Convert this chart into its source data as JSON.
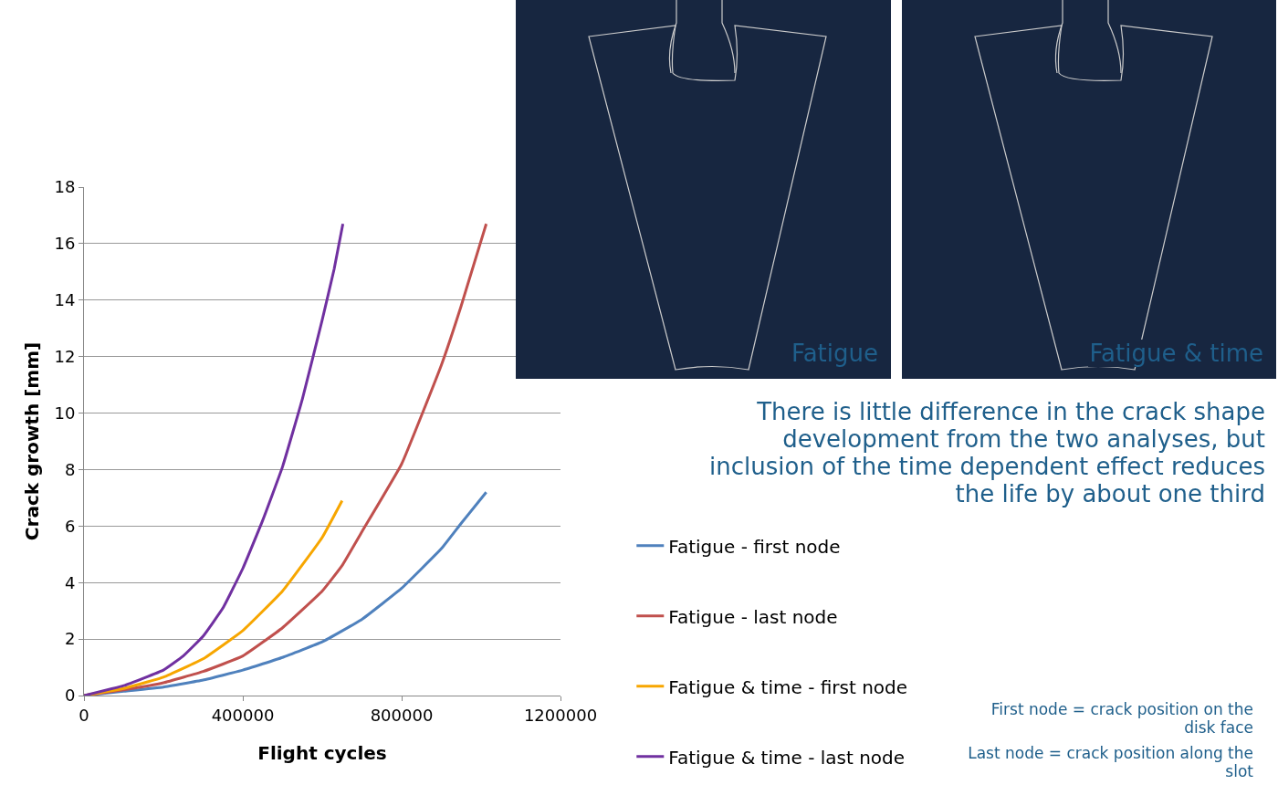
{
  "chart_data": {
    "type": "line",
    "xlabel": "Flight cycles",
    "ylabel": "Crack growth [mm]",
    "xlim": [
      0,
      1200000
    ],
    "xticks": [
      0,
      400000,
      800000,
      1200000
    ],
    "ylim": [
      0,
      18
    ],
    "yticks": [
      0,
      2,
      4,
      6,
      8,
      10,
      12,
      14,
      16,
      18
    ],
    "grid": "y",
    "legend": "bottom right",
    "line_style": "solid",
    "series": [
      {
        "name": "Fatigue - first node",
        "color": "#4f81bd",
        "x": [
          0,
          100000,
          200000,
          300000,
          400000,
          500000,
          600000,
          700000,
          800000,
          900000,
          950000,
          1013000
        ],
        "values": [
          0,
          0.15,
          0.3,
          0.55,
          0.9,
          1.35,
          1.9,
          2.7,
          3.8,
          5.2,
          6.1,
          7.2
        ]
      },
      {
        "name": "Fatigue - last node",
        "color": "#c0504d",
        "x": [
          0,
          100000,
          200000,
          300000,
          400000,
          500000,
          600000,
          650000,
          700000,
          800000,
          900000,
          950000,
          1013000
        ],
        "values": [
          0,
          0.2,
          0.45,
          0.85,
          1.4,
          2.4,
          3.7,
          4.6,
          5.8,
          8.2,
          11.7,
          13.8,
          16.7
        ]
      },
      {
        "name": "Fatigue & time - first node",
        "color": "#f7a600",
        "x": [
          0,
          100000,
          200000,
          300000,
          400000,
          500000,
          600000,
          650000
        ],
        "values": [
          0,
          0.25,
          0.65,
          1.3,
          2.3,
          3.7,
          5.6,
          6.9
        ]
      },
      {
        "name": "Fatigue & time - last node",
        "color": "#7030a0",
        "x": [
          0,
          100000,
          200000,
          250000,
          300000,
          350000,
          400000,
          450000,
          500000,
          550000,
          600000,
          630000,
          652000
        ],
        "values": [
          0,
          0.35,
          0.9,
          1.4,
          2.1,
          3.1,
          4.5,
          6.2,
          8.1,
          10.5,
          13.3,
          15.1,
          16.7
        ]
      }
    ],
    "annotations": [
      "Fatigue",
      "Fatigue & time",
      "There is little difference in the crack shape development from the two analyses, but inclusion of the time dependent effect reduces the life by about one third",
      "First node = crack position on the disk face",
      "Last node = crack position along the slot"
    ]
  }
}
